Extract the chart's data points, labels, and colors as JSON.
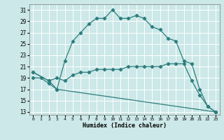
{
  "xlabel": "Humidex (Indice chaleur)",
  "ylabel": "",
  "bg_color": "#cce8e8",
  "grid_color": "#ffffff",
  "line_color": "#2d7d7d",
  "xlim": [
    -0.5,
    23.5
  ],
  "ylim": [
    12.5,
    32
  ],
  "xticks": [
    0,
    1,
    2,
    3,
    4,
    5,
    6,
    7,
    8,
    9,
    10,
    11,
    12,
    13,
    14,
    15,
    16,
    17,
    18,
    19,
    20,
    21,
    22,
    23
  ],
  "yticks": [
    13,
    15,
    17,
    19,
    21,
    23,
    25,
    27,
    29,
    31
  ],
  "curve1_x": [
    0,
    1,
    2,
    3,
    4,
    5,
    6,
    7,
    8,
    9,
    10,
    11,
    12,
    13,
    14,
    15,
    16,
    17,
    18,
    19,
    20,
    21,
    22,
    23
  ],
  "curve1_y": [
    19,
    19,
    18,
    17,
    22,
    25.5,
    27,
    28.5,
    29.5,
    29.5,
    31,
    29.5,
    29.5,
    30,
    29.5,
    28,
    27.5,
    26,
    25.5,
    22,
    21.5,
    17,
    14,
    13
  ],
  "curve2_x": [
    0,
    2,
    3,
    4,
    5,
    6,
    7,
    8,
    9,
    10,
    11,
    12,
    13,
    14,
    15,
    16,
    17,
    18,
    19,
    20,
    21,
    22,
    23
  ],
  "curve2_y": [
    20,
    18.5,
    19,
    18.5,
    19.5,
    20,
    20,
    20.5,
    20.5,
    20.5,
    20.5,
    21,
    21,
    21,
    21,
    21,
    21.5,
    21.5,
    21.5,
    18.5,
    16,
    14,
    13
  ],
  "curve3_x": [
    0,
    2,
    3,
    23
  ],
  "curve3_y": [
    20,
    18.5,
    17,
    13
  ]
}
